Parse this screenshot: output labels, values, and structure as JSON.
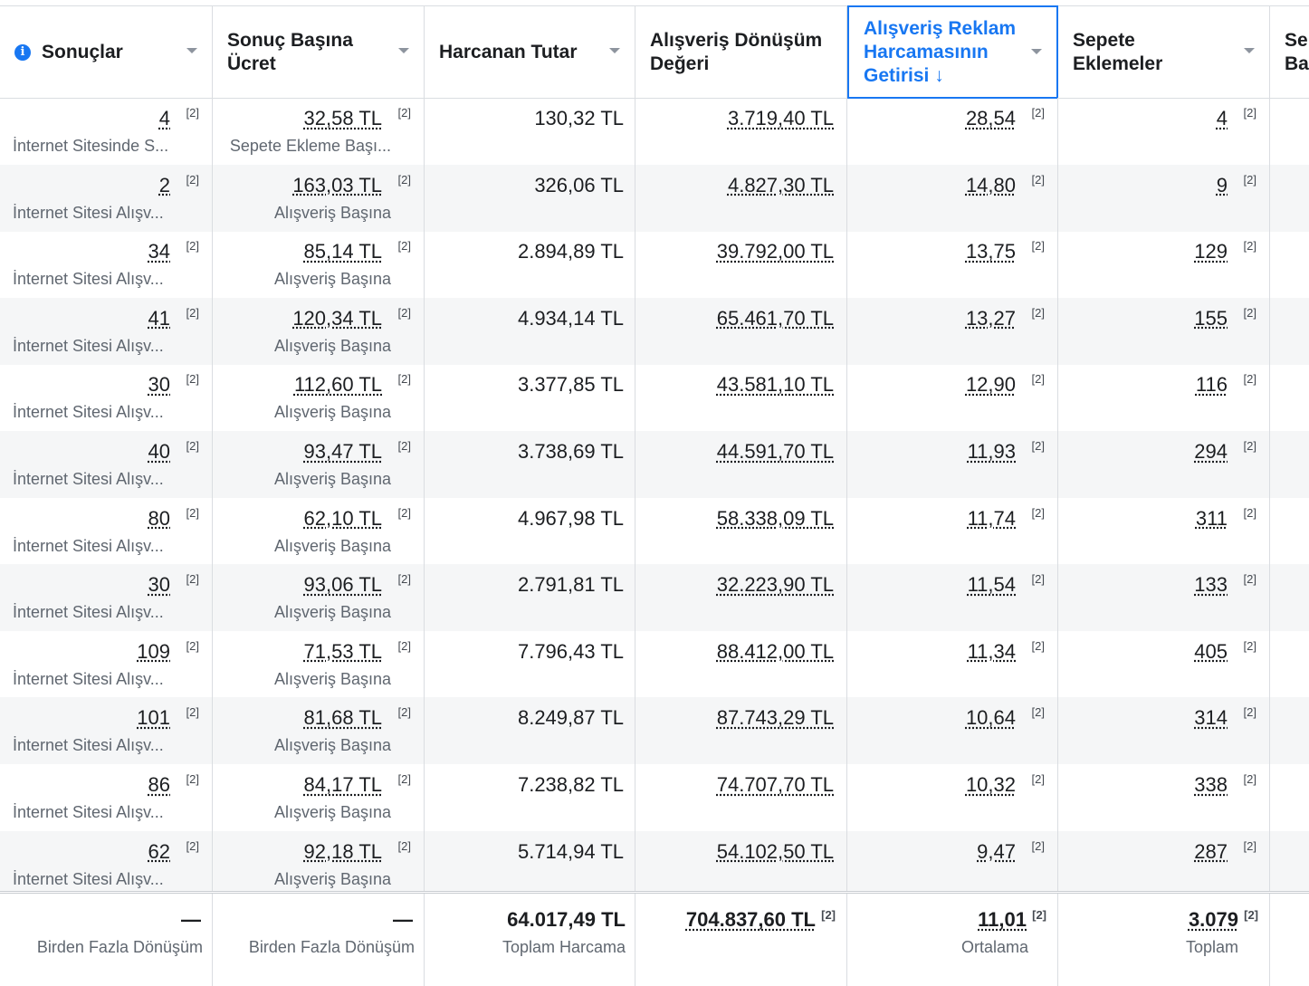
{
  "headers": [
    {
      "label": "Sonuçlar",
      "has_info": true,
      "active": false
    },
    {
      "label": "Sonuç Başına Ücret",
      "has_info": false,
      "active": false
    },
    {
      "label": "Harcanan Tutar",
      "has_info": false,
      "active": false
    },
    {
      "label": "Alışveriş Dönüşüm Değeri",
      "has_info": false,
      "active": false
    },
    {
      "label": "Alışveriş Reklam Harcamasının Getirisi",
      "has_info": false,
      "active": true,
      "sort_arrow": "↓"
    },
    {
      "label": "Sepete Eklemeler",
      "has_info": false,
      "active": false
    },
    {
      "label": "Sepete Ba",
      "has_info": false,
      "active": false
    }
  ],
  "footnote": "[2]",
  "rows": [
    {
      "results": "4",
      "results_type": "İnternet Sitesinde S...",
      "cpr": "32,58 TL",
      "cpr_type": "Sepete Ekleme Başı...",
      "spent": "130,32 TL",
      "conv_value": "3.719,40 TL",
      "roas": "28,54",
      "add_to_cart": "4"
    },
    {
      "results": "2",
      "results_type": "İnternet Sitesi Alışv...",
      "cpr": "163,03 TL",
      "cpr_type": "Alışveriş Başına",
      "spent": "326,06 TL",
      "conv_value": "4.827,30 TL",
      "roas": "14,80",
      "add_to_cart": "9"
    },
    {
      "results": "34",
      "results_type": "İnternet Sitesi Alışv...",
      "cpr": "85,14 TL",
      "cpr_type": "Alışveriş Başına",
      "spent": "2.894,89 TL",
      "conv_value": "39.792,00 TL",
      "roas": "13,75",
      "add_to_cart": "129"
    },
    {
      "results": "41",
      "results_type": "İnternet Sitesi Alışv...",
      "cpr": "120,34 TL",
      "cpr_type": "Alışveriş Başına",
      "spent": "4.934,14 TL",
      "conv_value": "65.461,70 TL",
      "roas": "13,27",
      "add_to_cart": "155"
    },
    {
      "results": "30",
      "results_type": "İnternet Sitesi Alışv...",
      "cpr": "112,60 TL",
      "cpr_type": "Alışveriş Başına",
      "spent": "3.377,85 TL",
      "conv_value": "43.581,10 TL",
      "roas": "12,90",
      "add_to_cart": "116"
    },
    {
      "results": "40",
      "results_type": "İnternet Sitesi Alışv...",
      "cpr": "93,47 TL",
      "cpr_type": "Alışveriş Başına",
      "spent": "3.738,69 TL",
      "conv_value": "44.591,70 TL",
      "roas": "11,93",
      "add_to_cart": "294"
    },
    {
      "results": "80",
      "results_type": "İnternet Sitesi Alışv...",
      "cpr": "62,10 TL",
      "cpr_type": "Alışveriş Başına",
      "spent": "4.967,98 TL",
      "conv_value": "58.338,09 TL",
      "roas": "11,74",
      "add_to_cart": "311"
    },
    {
      "results": "30",
      "results_type": "İnternet Sitesi Alışv...",
      "cpr": "93,06 TL",
      "cpr_type": "Alışveriş Başına",
      "spent": "2.791,81 TL",
      "conv_value": "32.223,90 TL",
      "roas": "11,54",
      "add_to_cart": "133"
    },
    {
      "results": "109",
      "results_type": "İnternet Sitesi Alışv...",
      "cpr": "71,53 TL",
      "cpr_type": "Alışveriş Başına",
      "spent": "7.796,43 TL",
      "conv_value": "88.412,00 TL",
      "roas": "11,34",
      "add_to_cart": "405"
    },
    {
      "results": "101",
      "results_type": "İnternet Sitesi Alışv...",
      "cpr": "81,68 TL",
      "cpr_type": "Alışveriş Başına",
      "spent": "8.249,87 TL",
      "conv_value": "87.743,29 TL",
      "roas": "10,64",
      "add_to_cart": "314"
    },
    {
      "results": "86",
      "results_type": "İnternet Sitesi Alışv...",
      "cpr": "84,17 TL",
      "cpr_type": "Alışveriş Başına",
      "spent": "7.238,82 TL",
      "conv_value": "74.707,70 TL",
      "roas": "10,32",
      "add_to_cart": "338"
    },
    {
      "results": "62",
      "results_type": "İnternet Sitesi Alışv...",
      "cpr": "92,18 TL",
      "cpr_type": "Alışveriş Başına",
      "spent": "5.714,94 TL",
      "conv_value": "54.102,50 TL",
      "roas": "9,47",
      "add_to_cart": "287"
    }
  ],
  "footer": {
    "results": {
      "value": "—",
      "label": "Birden Fazla Dönüşüm"
    },
    "cpr": {
      "value": "—",
      "label": "Birden Fazla Dönüşüm"
    },
    "spent": {
      "value": "64.017,49 TL",
      "label": "Toplam Harcama"
    },
    "conv_value": {
      "value": "704.837,60 TL",
      "label": ""
    },
    "roas": {
      "value": "11,01",
      "label": "Ortalama"
    },
    "add_to_cart": {
      "value": "3.079",
      "label": "Toplam"
    }
  }
}
